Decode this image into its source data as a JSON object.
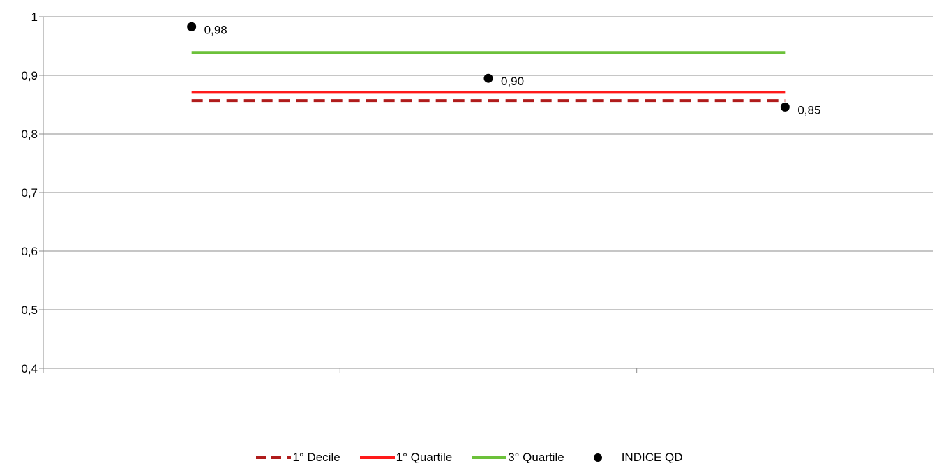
{
  "chart_data": {
    "type": "scatter",
    "title": "",
    "xlabel": "",
    "ylabel": "",
    "ylim": [
      0.4,
      1
    ],
    "y_ticks": [
      "0,4",
      "0,5",
      "0,6",
      "0,7",
      "0,8",
      "0,9",
      "1"
    ],
    "y_tick_values": [
      0.4,
      0.5,
      0.6,
      0.7,
      0.8,
      0.9,
      1.0
    ],
    "x_categories": 3,
    "grid": "horizontal",
    "legend_position": "bottom",
    "reference_lines": [
      {
        "name": "1° Decile",
        "value": 0.857,
        "color": "#b01c1c",
        "style": "dashed"
      },
      {
        "name": "1° Quartile",
        "value": 0.871,
        "color": "#ff1a1a",
        "style": "solid"
      },
      {
        "name": "3° Quartile",
        "value": 0.939,
        "color": "#6cc13a",
        "style": "solid"
      }
    ],
    "points": {
      "name": "INDICE QD",
      "color": "#000000",
      "x": [
        0.5,
        1.5,
        2.5
      ],
      "y": [
        0.983,
        0.895,
        0.846
      ],
      "labels": [
        "0,98",
        "0,90",
        "0,85"
      ]
    }
  }
}
